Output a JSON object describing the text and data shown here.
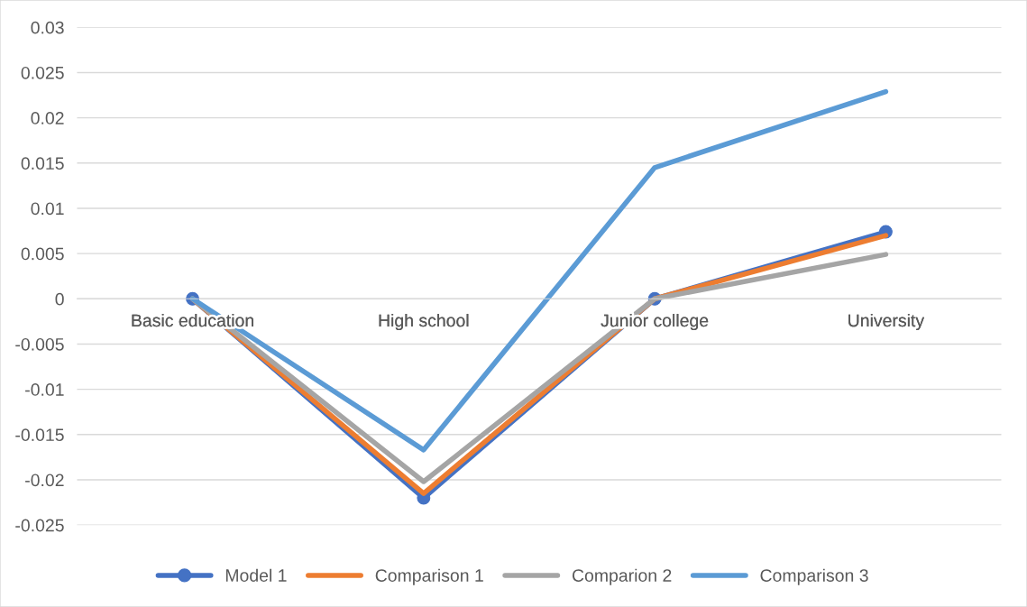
{
  "chart_data": {
    "type": "line",
    "categories": [
      "Basic education",
      "High school",
      "Junior college",
      "University"
    ],
    "series": [
      {
        "name": "Model 1",
        "color": "#4472c4",
        "marker": "circle",
        "values": [
          0,
          -0.022,
          0,
          0.0074
        ]
      },
      {
        "name": "Comparison 1",
        "color": "#ed7d31",
        "marker": "none",
        "values": [
          0,
          -0.0215,
          0,
          0.007
        ]
      },
      {
        "name": "Comparion 2",
        "color": "#a5a5a5",
        "marker": "none",
        "values": [
          0,
          -0.0202,
          0,
          0.0049
        ]
      },
      {
        "name": "Comparison 3",
        "color": "#5b9bd5",
        "marker": "none",
        "values": [
          0,
          -0.0167,
          0.0145,
          0.0229
        ]
      }
    ],
    "ylim": [
      -0.025,
      0.03
    ],
    "yticks": [
      -0.025,
      -0.02,
      -0.015,
      -0.01,
      -0.005,
      0,
      0.005,
      0.01,
      0.015,
      0.02,
      0.025,
      0.03
    ],
    "grid": "y",
    "legend": "bottom",
    "line_style": "solid"
  }
}
